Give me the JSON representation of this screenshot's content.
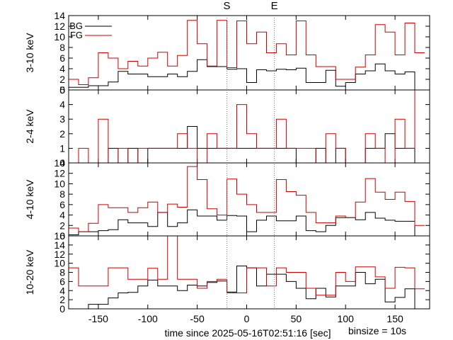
{
  "chart_data": {
    "type": "line",
    "xlabel": "time since 2025-05-16T02:51:16 [sec]",
    "binsize_label": "binsize = 10s",
    "x_range": [
      -180,
      185
    ],
    "x_ticks": [
      -150,
      -100,
      -50,
      0,
      50,
      100,
      150
    ],
    "x_tick_labels": [
      "-150",
      "-100",
      "-50",
      "0",
      "50",
      "100",
      "150"
    ],
    "markers": [
      {
        "label": "S",
        "x": -20
      },
      {
        "label": "E",
        "x": 28
      }
    ],
    "colors": {
      "BG": "#000000",
      "FG": "#cc0000",
      "marker": "#777777"
    },
    "legend": {
      "position": "top-left",
      "entries": [
        "BG",
        "FG"
      ]
    },
    "bin_edges": [
      -180,
      -170,
      -160,
      -150,
      -140,
      -130,
      -120,
      -110,
      -100,
      -90,
      -80,
      -70,
      -60,
      -50,
      -40,
      -30,
      -20,
      -10,
      0,
      10,
      20,
      30,
      40,
      50,
      60,
      70,
      80,
      90,
      100,
      110,
      120,
      130,
      140,
      150,
      160,
      170,
      180
    ],
    "panels": [
      {
        "ylabel": "3-10 keV",
        "ylim": [
          0,
          14
        ],
        "y_ticks": [
          0,
          2,
          4,
          6,
          8,
          10,
          12,
          14
        ],
        "y_tick_labels": [
          "0",
          "2",
          "4",
          "6",
          "8",
          "10",
          "12",
          "14"
        ],
        "series": [
          {
            "name": "BG",
            "values": [
              0.5,
              0.5,
              0.8,
              0.8,
              1.5,
              3.5,
              3.0,
              3.0,
              2.5,
              2.5,
              3.0,
              2.5,
              3.5,
              5.7,
              4.4,
              4.4,
              3.9,
              4.0,
              1.4,
              3.8,
              3.6,
              3.9,
              3.8,
              4.1,
              1.4,
              1.4,
              3.7,
              0.7,
              1.4,
              3.0,
              3.6,
              4.9,
              3.6,
              3.0,
              3.4,
              0.0
            ]
          },
          {
            "name": "FG",
            "values": [
              2.0,
              1.0,
              2.3,
              7.0,
              6.0,
              4.0,
              5.4,
              4.5,
              6.0,
              7.1,
              4.5,
              6.5,
              13.1,
              8.7,
              4.5,
              13.1,
              4.2,
              13.0,
              8.7,
              10.9,
              7.0,
              8.7,
              6.6,
              13.0,
              6.6,
              4.4,
              4.4,
              2.0,
              2.0,
              4.3,
              6.6,
              12.3,
              10.9,
              6.6,
              12.6,
              7.0
            ]
          }
        ]
      },
      {
        "ylabel": "2-4 keV",
        "ylim": [
          0,
          5
        ],
        "y_ticks": [
          0,
          1,
          2,
          3,
          4,
          5
        ],
        "y_tick_labels": [
          "0",
          "1",
          "2",
          "3",
          "4",
          "5"
        ],
        "series": [
          {
            "name": "BG",
            "values": [
              0,
              0,
              0,
              0,
              1,
              0,
              1,
              0,
              1,
              1,
              1,
              1,
              2.5,
              1,
              1,
              1,
              1,
              1,
              1,
              1,
              1,
              1,
              1,
              0,
              0,
              1,
              0,
              1,
              0,
              0,
              1,
              1,
              2,
              1,
              1,
              0
            ]
          },
          {
            "name": "FG",
            "values": [
              0,
              1,
              0,
              3,
              0,
              1,
              0,
              1,
              1,
              1,
              1,
              2,
              1,
              0,
              2,
              1,
              1,
              4,
              2,
              1,
              1,
              3,
              1,
              1,
              1,
              0,
              2,
              1,
              0,
              0,
              2,
              1,
              0,
              3,
              1,
              5
            ]
          }
        ]
      },
      {
        "ylabel": "4-10 keV",
        "ylim": [
          0,
          14
        ],
        "y_ticks": [
          0,
          2,
          4,
          6,
          8,
          10,
          12,
          14
        ],
        "y_tick_labels": [
          "0",
          "2",
          "4",
          "6",
          "8",
          "10",
          "12",
          "14"
        ],
        "series": [
          {
            "name": "BG",
            "values": [
              0.2,
              0.8,
              0.8,
              1.0,
              1.2,
              3.1,
              2.5,
              2.5,
              1.8,
              4.5,
              1.8,
              2.5,
              5.0,
              3.8,
              3.8,
              3.0,
              3.9,
              3.8,
              0.8,
              3.0,
              3.8,
              2.9,
              2.9,
              3.8,
              1.0,
              0.8,
              2.0,
              3.5,
              3.5,
              3.1,
              4.5,
              3.4,
              3.0,
              2.8,
              2.8,
              0.0
            ]
          },
          {
            "name": "FG",
            "values": [
              1.5,
              0.8,
              2.4,
              6.0,
              5.4,
              5.4,
              4.5,
              5.4,
              6.5,
              4.5,
              6.1,
              5.5,
              13.3,
              10.8,
              5.2,
              4.0,
              10.9,
              8.0,
              6.0,
              4.5,
              4.5,
              10.8,
              8.5,
              7.8,
              4.5,
              2.5,
              2.5,
              3.8,
              3.5,
              6.5,
              11.0,
              8.4,
              7.0,
              8.4,
              6.6,
              2.0
            ]
          }
        ]
      },
      {
        "ylabel": "10-20 keV",
        "ylim": [
          0,
          16
        ],
        "y_ticks": [
          0,
          2,
          4,
          6,
          8,
          10,
          12,
          14,
          16
        ],
        "y_tick_labels": [
          "0",
          "2",
          "4",
          "6",
          "8",
          "10",
          "12",
          "14",
          "16"
        ],
        "series": [
          {
            "name": "BG",
            "values": [
              0,
              0,
              1,
              1,
              2.4,
              3.5,
              3.6,
              5.0,
              6.3,
              5.0,
              5.0,
              4.0,
              5.2,
              5.0,
              5.8,
              6.1,
              3.7,
              9.4,
              9.0,
              5.0,
              7.6,
              7.6,
              6.0,
              4.5,
              2.2,
              4.5,
              2.6,
              5.0,
              5.0,
              8.0,
              5.5,
              6.5,
              1.5,
              2.5,
              4.4,
              0.0
            ]
          },
          {
            "name": "FG",
            "values": [
              9.0,
              5.0,
              5.0,
              5.0,
              9.0,
              9.0,
              6.5,
              6.5,
              8.9,
              6.5,
              16.0,
              6.5,
              6.5,
              4.5,
              6.0,
              6.5,
              3.5,
              3.5,
              9.0,
              9.0,
              5.0,
              9.0,
              8.0,
              8.0,
              4.5,
              3.0,
              3.0,
              8.0,
              6.0,
              9.2,
              9.2,
              7.0,
              4.5,
              9.1,
              9.0,
              4.4
            ]
          }
        ]
      }
    ]
  }
}
